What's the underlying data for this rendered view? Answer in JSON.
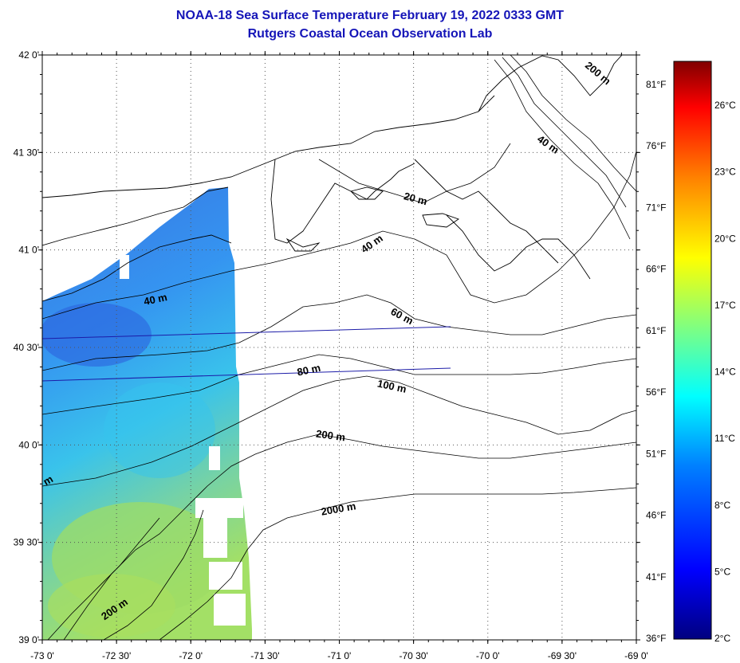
{
  "title": {
    "line1": "NOAA-18 Sea Surface Temperature February 19, 2022 0333 GMT",
    "line2": "Rutgers Coastal Ocean Observation Lab"
  },
  "axes": {
    "lat_labels": [
      "42 0'",
      "41 30'",
      "41 0'",
      "40 30'",
      "40 0'",
      "39 30'",
      "39 0'"
    ],
    "lon_labels": [
      "-73 0'",
      "-72 30'",
      "-72 0'",
      "-71 30'",
      "-71 0'",
      "-70 30'",
      "-70 0'",
      "-69 30'",
      "-69 0'"
    ],
    "lat_range": [
      39.0,
      42.0
    ],
    "lon_range": [
      -73.0,
      -69.0
    ],
    "grid": "dotted"
  },
  "fahrenheit_labels": [
    "81°F",
    "76°F",
    "71°F",
    "66°F",
    "61°F",
    "56°F",
    "51°F",
    "46°F",
    "41°F",
    "36°F"
  ],
  "colorbar": {
    "labels": [
      "26°C",
      "23°C",
      "20°C",
      "17°C",
      "14°C",
      "11°C",
      "8°C",
      "5°C",
      "2°C"
    ],
    "colors": [
      "#00007f",
      "#0000ff",
      "#0080ff",
      "#00ffff",
      "#80ff80",
      "#ffff00",
      "#ff8000",
      "#ff0000",
      "#800000"
    ]
  },
  "contours": {
    "labels": [
      "200 m",
      "40 m",
      "20 m",
      "40 m",
      "40 m",
      "60 m",
      "80 m",
      "100 m",
      "200 m",
      "2000 m",
      "200 m",
      "m"
    ]
  },
  "data_colors": {
    "cold": "#2a78e6",
    "mid": "#2fb8e8",
    "warm": "#8fd860",
    "coast": "#000000",
    "ship_track": "#1c1ca8"
  }
}
